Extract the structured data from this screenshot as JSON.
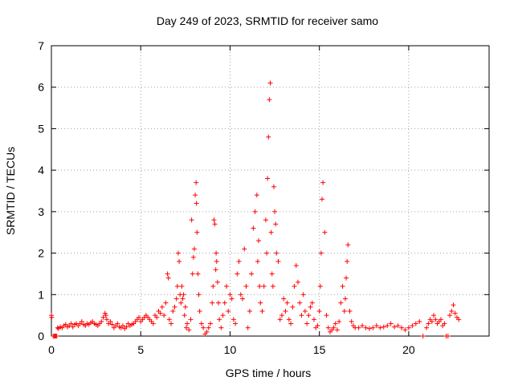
{
  "chart_data": {
    "type": "scatter",
    "title": "Day 249 of 2023, SRMTID for receiver samo",
    "xlabel": "GPS time / hours",
    "ylabel": "SRMTID / TECUs",
    "xlim": [
      0,
      24.5
    ],
    "ylim": [
      0,
      7
    ],
    "xticks": [
      0,
      5,
      10,
      15,
      20
    ],
    "xtick_labels": [
      "0",
      "5",
      "10",
      "15",
      "20"
    ],
    "yticks": [
      0,
      1,
      2,
      3,
      4,
      5,
      6,
      7
    ],
    "ytick_labels": [
      "0",
      "1",
      "2",
      "3",
      "4",
      "5",
      "6",
      "7"
    ],
    "grid": true,
    "marker": "plus",
    "marker_color": "#ff0000",
    "series": [
      {
        "name": "SRMTID",
        "x": [
          0.0,
          0.02,
          0.1,
          0.15,
          0.2,
          0.25,
          0.3,
          0.35,
          0.4,
          0.5,
          0.6,
          0.7,
          0.8,
          0.9,
          1.0,
          1.1,
          1.2,
          1.3,
          1.4,
          1.5,
          1.6,
          1.7,
          1.8,
          1.9,
          2.0,
          2.1,
          2.2,
          2.3,
          2.4,
          2.5,
          2.6,
          2.7,
          2.8,
          2.9,
          3.0,
          3.05,
          3.1,
          3.2,
          3.3,
          3.4,
          3.5,
          3.6,
          3.7,
          3.8,
          3.9,
          4.0,
          4.1,
          4.2,
          4.3,
          4.4,
          4.5,
          4.6,
          4.7,
          4.8,
          4.9,
          5.0,
          5.1,
          5.2,
          5.3,
          5.4,
          5.5,
          5.6,
          5.7,
          5.8,
          5.9,
          6.0,
          6.1,
          6.2,
          6.3,
          6.4,
          6.5,
          6.55,
          6.6,
          6.7,
          6.8,
          6.9,
          7.0,
          7.05,
          7.1,
          7.15,
          7.2,
          7.25,
          7.3,
          7.35,
          7.4,
          7.45,
          7.5,
          7.55,
          7.6,
          7.7,
          7.8,
          7.85,
          7.9,
          7.95,
          8.0,
          8.05,
          8.1,
          8.12,
          8.15,
          8.2,
          8.25,
          8.3,
          8.4,
          8.5,
          8.6,
          8.7,
          8.8,
          8.9,
          9.0,
          9.05,
          9.1,
          9.15,
          9.2,
          9.22,
          9.25,
          9.3,
          9.35,
          9.4,
          9.5,
          9.6,
          9.7,
          9.8,
          9.9,
          10.0,
          10.1,
          10.2,
          10.3,
          10.4,
          10.5,
          10.6,
          10.7,
          10.8,
          10.9,
          11.0,
          11.1,
          11.2,
          11.3,
          11.4,
          11.5,
          11.55,
          11.6,
          11.65,
          11.7,
          11.8,
          11.9,
          12.0,
          12.05,
          12.1,
          12.15,
          12.2,
          12.25,
          12.3,
          12.35,
          12.4,
          12.45,
          12.5,
          12.55,
          12.6,
          12.7,
          12.8,
          12.9,
          13.0,
          13.1,
          13.2,
          13.3,
          13.4,
          13.5,
          13.6,
          13.7,
          13.8,
          13.9,
          14.0,
          14.1,
          14.2,
          14.3,
          14.4,
          14.5,
          14.6,
          14.7,
          14.8,
          14.9,
          15.0,
          15.05,
          15.1,
          15.15,
          15.2,
          15.3,
          15.4,
          15.5,
          15.6,
          15.7,
          15.8,
          15.9,
          16.0,
          16.1,
          16.2,
          16.3,
          16.4,
          16.45,
          16.5,
          16.55,
          16.6,
          16.7,
          16.8,
          16.9,
          17.0,
          17.2,
          17.4,
          17.6,
          17.8,
          18.0,
          18.2,
          18.4,
          18.6,
          18.8,
          19.0,
          19.2,
          19.4,
          19.6,
          19.8,
          20.0,
          20.2,
          20.4,
          20.6,
          20.8,
          21.0,
          21.1,
          21.2,
          21.3,
          21.4,
          21.5,
          21.6,
          21.7,
          21.8,
          21.9,
          22.0,
          22.1,
          22.2,
          22.3,
          22.4,
          22.5,
          22.6,
          22.7,
          22.8
        ],
        "y": [
          0.5,
          0.45,
          0.0,
          0.0,
          0.0,
          0.0,
          0.0,
          0.2,
          0.18,
          0.22,
          0.2,
          0.25,
          0.28,
          0.22,
          0.25,
          0.3,
          0.22,
          0.28,
          0.3,
          0.25,
          0.3,
          0.35,
          0.28,
          0.25,
          0.3,
          0.28,
          0.32,
          0.35,
          0.3,
          0.28,
          0.25,
          0.3,
          0.35,
          0.45,
          0.55,
          0.5,
          0.4,
          0.3,
          0.35,
          0.28,
          0.2,
          0.25,
          0.3,
          0.22,
          0.2,
          0.25,
          0.18,
          0.22,
          0.3,
          0.25,
          0.28,
          0.3,
          0.35,
          0.4,
          0.45,
          0.35,
          0.4,
          0.45,
          0.5,
          0.45,
          0.4,
          0.35,
          0.3,
          0.5,
          0.45,
          0.6,
          0.55,
          0.7,
          0.5,
          0.8,
          1.5,
          1.4,
          0.4,
          0.3,
          0.6,
          0.7,
          0.9,
          1.2,
          2.0,
          1.8,
          1.0,
          0.8,
          1.2,
          0.9,
          1.0,
          0.5,
          0.7,
          0.2,
          0.3,
          0.15,
          0.4,
          2.8,
          1.5,
          1.9,
          2.1,
          3.4,
          3.7,
          3.2,
          2.5,
          1.5,
          1.0,
          0.6,
          0.3,
          0.2,
          0.05,
          0.1,
          0.2,
          0.3,
          0.8,
          1.2,
          2.8,
          2.7,
          1.6,
          2.0,
          1.8,
          1.3,
          0.8,
          0.4,
          0.2,
          0.5,
          0.8,
          1.2,
          0.6,
          1.0,
          0.9,
          0.4,
          0.3,
          1.5,
          1.8,
          1.0,
          0.9,
          2.1,
          1.2,
          0.2,
          0.6,
          1.5,
          2.6,
          3.0,
          3.4,
          1.8,
          2.3,
          1.2,
          0.8,
          0.6,
          1.2,
          2.8,
          2.0,
          3.8,
          4.8,
          5.7,
          6.1,
          2.5,
          1.5,
          1.2,
          3.6,
          3.0,
          2.7,
          2.0,
          1.8,
          0.4,
          0.5,
          0.9,
          0.6,
          0.8,
          0.4,
          0.3,
          0.7,
          1.2,
          1.7,
          1.3,
          0.8,
          0.5,
          1.0,
          0.6,
          0.3,
          0.5,
          0.7,
          0.8,
          0.4,
          0.2,
          0.25,
          0.6,
          1.2,
          2.0,
          3.3,
          3.7,
          2.5,
          0.5,
          0.2,
          0.1,
          0.15,
          0.2,
          0.3,
          0.15,
          0.35,
          0.8,
          1.2,
          0.6,
          0.9,
          1.4,
          1.8,
          2.2,
          0.6,
          0.35,
          0.25,
          0.2,
          0.2,
          0.25,
          0.2,
          0.18,
          0.2,
          0.25,
          0.2,
          0.22,
          0.25,
          0.3,
          0.22,
          0.25,
          0.2,
          0.15,
          0.2,
          0.25,
          0.3,
          0.35,
          0.0,
          0.2,
          0.3,
          0.4,
          0.35,
          0.5,
          0.4,
          0.3,
          0.35,
          0.4,
          0.25,
          0.3,
          0.0,
          0.0,
          0.5,
          0.6,
          0.75,
          0.55,
          0.45,
          0.4
        ]
      }
    ]
  }
}
